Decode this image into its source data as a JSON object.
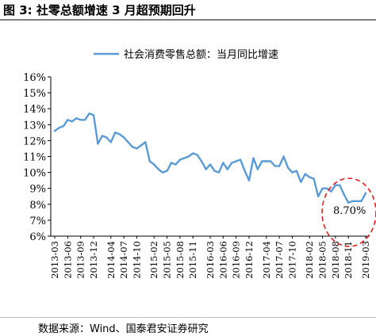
{
  "header": {
    "title": "图 3:  社零总额增速 3 月超预期回升"
  },
  "footer": {
    "source": "数据来源：Wind、国泰君安证券研究"
  },
  "colors": {
    "line": "#5b9bd5",
    "annotation_circle": "#e01f1f",
    "rule": "#7f7f7f"
  },
  "chart_data": {
    "type": "line",
    "title": "",
    "xlabel": "",
    "ylabel": "",
    "ylim": [
      6,
      16
    ],
    "y_unit": "%",
    "y_ticks": [
      "16%",
      "15%",
      "14%",
      "13%",
      "12%",
      "11%",
      "10%",
      "9%",
      "8%",
      "7%",
      "6%"
    ],
    "legend_position": "top",
    "x": [
      "2013-03",
      "2013-04",
      "2013-05",
      "2013-06",
      "2013-07",
      "2013-08",
      "2013-09",
      "2013-10",
      "2013-11",
      "2013-12",
      "2014-01",
      "2014-02",
      "2014-03",
      "2014-04",
      "2014-05",
      "2014-06",
      "2014-07",
      "2014-08",
      "2014-09",
      "2014-10",
      "2014-11",
      "2014-12",
      "2015-01",
      "2015-02",
      "2015-03",
      "2015-04",
      "2015-05",
      "2015-06",
      "2015-07",
      "2015-08",
      "2015-09",
      "2015-10",
      "2015-11",
      "2015-12",
      "2016-01",
      "2016-02",
      "2016-03",
      "2016-04",
      "2016-05",
      "2016-06",
      "2016-07",
      "2016-08",
      "2016-09",
      "2016-10",
      "2016-11",
      "2016-12",
      "2017-01",
      "2017-02",
      "2017-03",
      "2017-04",
      "2017-05",
      "2017-06",
      "2017-07",
      "2017-08",
      "2017-09",
      "2017-10",
      "2017-11",
      "2017-12",
      "2018-01",
      "2018-02",
      "2018-03",
      "2018-04",
      "2018-05",
      "2018-06",
      "2018-07",
      "2018-08",
      "2018-09",
      "2018-10",
      "2018-11",
      "2018-12",
      "2019-01",
      "2019-02",
      "2019-03"
    ],
    "x_tick_labels": [
      "2013-03",
      "2013-06",
      "2013-09",
      "2013-12",
      "2014-04",
      "2014-07",
      "2014-10",
      "2015-02",
      "2015-05",
      "2015-08",
      "2015-11",
      "2016-03",
      "2016-06",
      "2016-09",
      "2016-12",
      "2017-04",
      "2017-07",
      "2017-10",
      "2018-02",
      "2018-05",
      "2018-08",
      "2018-11",
      "2019-03"
    ],
    "series": [
      {
        "name": "社会消费零售总额：当月同比增速",
        "values": [
          12.6,
          12.8,
          12.9,
          13.3,
          13.2,
          13.4,
          13.3,
          13.3,
          13.7,
          13.6,
          11.8,
          12.3,
          12.2,
          11.9,
          12.5,
          12.4,
          12.2,
          11.9,
          11.6,
          11.5,
          11.7,
          11.9,
          10.7,
          10.5,
          10.2,
          10.0,
          10.1,
          10.6,
          10.5,
          10.8,
          10.9,
          11.0,
          11.2,
          11.1,
          10.7,
          10.2,
          10.5,
          10.1,
          10.0,
          10.6,
          10.2,
          10.6,
          10.7,
          10.8,
          10.1,
          9.5,
          10.9,
          10.2,
          10.7,
          10.7,
          10.7,
          10.4,
          10.4,
          11.0,
          10.3,
          10.0,
          10.1,
          9.4,
          9.9,
          9.7,
          9.6,
          8.5,
          9.0,
          9.0,
          8.8,
          9.2,
          9.2,
          8.6,
          8.1,
          8.2,
          8.2,
          8.2,
          8.7
        ]
      }
    ],
    "annotations": [
      {
        "text": "8.70%",
        "x": "2019-03",
        "y": 8.7
      }
    ]
  }
}
